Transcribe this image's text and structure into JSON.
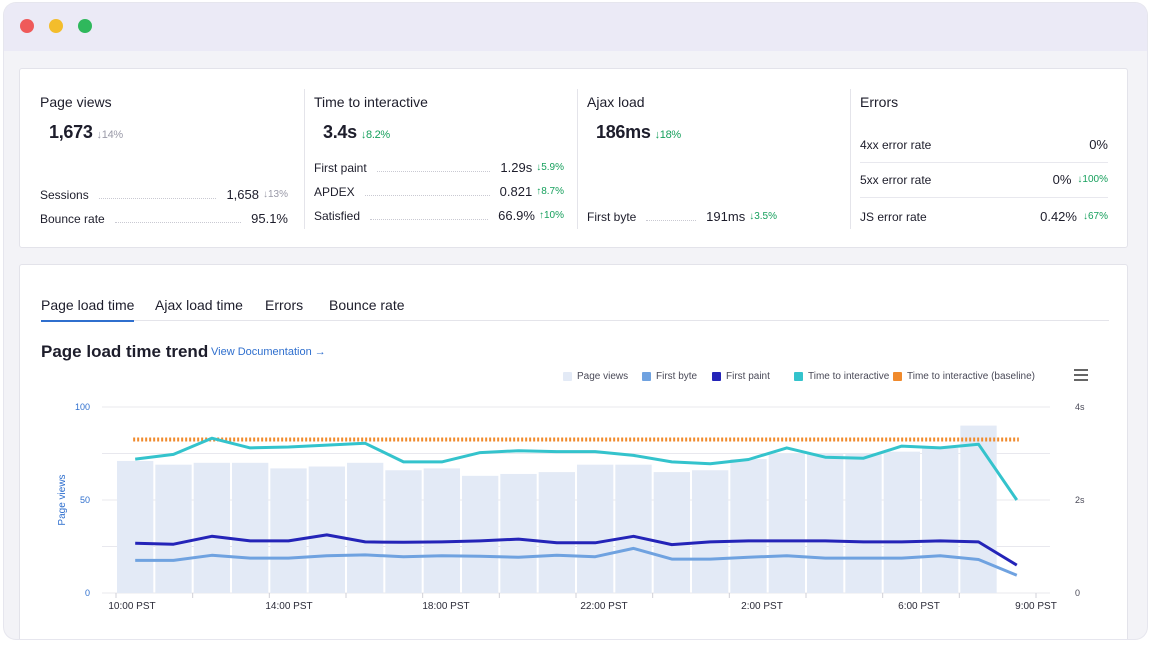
{
  "window": {
    "controls": [
      "close",
      "minimize",
      "maximize"
    ]
  },
  "summary": {
    "page_views": {
      "title": "Page views",
      "value": "1,673",
      "delta": "↓14%",
      "rows": [
        {
          "label": "Sessions",
          "value": "1,658",
          "delta": "↓13%"
        },
        {
          "label": "Bounce rate",
          "value": "95.1%",
          "delta": ""
        }
      ]
    },
    "tti": {
      "title": "Time to interactive",
      "value": "3.4s",
      "delta": "↓8.2%",
      "rows": [
        {
          "label": "First paint",
          "value": "1.29s",
          "delta": "↓5.9%"
        },
        {
          "label": "APDEX",
          "value": "0.821",
          "delta": "↑8.7%"
        },
        {
          "label": "Satisfied",
          "value": "66.9%",
          "delta": "↑10%"
        }
      ]
    },
    "ajax": {
      "title": "Ajax load",
      "value": "186ms",
      "delta": "↓18%",
      "rows": [
        {
          "label": "First byte",
          "value": "191ms",
          "delta": "↓3.5%"
        }
      ]
    },
    "errors": {
      "title": "Errors",
      "rows": [
        {
          "label": "4xx error rate",
          "value": "0%",
          "delta": ""
        },
        {
          "label": "5xx error rate",
          "value": "0%",
          "delta": "↓100%"
        },
        {
          "label": "JS error rate",
          "value": "0.42%",
          "delta": "↓67%"
        }
      ]
    }
  },
  "tabs": [
    "Page load time",
    "Ajax load time",
    "Errors",
    "Bounce rate"
  ],
  "active_tab": "Page load time",
  "trend": {
    "title": "Page load time trend",
    "doc_link": "View Documentation →"
  },
  "colors": {
    "page_views": "#e3eaf6",
    "first_byte": "#6fa2e0",
    "first_paint": "#2424b8",
    "tti": "#34c3cc",
    "baseline": "#f08a2c",
    "accent": "#2f6fce",
    "green": "#17a05d",
    "gray": "#9a9aa8"
  },
  "icons": {
    "menu": "hamburger-menu-icon"
  },
  "chart_data": {
    "type": "line",
    "legend_position": "top-right",
    "legend": [
      "Page views",
      "First byte",
      "First paint",
      "Time to interactive",
      "Time to interactive (baseline)"
    ],
    "x_ticks": [
      "10:00 PST",
      "14:00 PST",
      "18:00 PST",
      "22:00 PST",
      "2:00 PST",
      "6:00 PST",
      "9:00 PST"
    ],
    "y_left": {
      "label": "Page views",
      "ticks": [
        "0",
        "50",
        "100"
      ],
      "range": [
        0,
        100
      ]
    },
    "y_right": {
      "ticks": [
        "0",
        "2s",
        "4s"
      ],
      "range": [
        0,
        4
      ]
    },
    "grid": true,
    "page_views": [
      71,
      69,
      70,
      70,
      67,
      68,
      70,
      66,
      67,
      63,
      64,
      65,
      69,
      69,
      65,
      66,
      72,
      75,
      75,
      75,
      76,
      78,
      90,
      0
    ],
    "first_byte": [
      0.7,
      0.7,
      0.81,
      0.75,
      0.75,
      0.8,
      0.82,
      0.78,
      0.8,
      0.79,
      0.77,
      0.81,
      0.78,
      0.96,
      0.73,
      0.73,
      0.77,
      0.8,
      0.75,
      0.75,
      0.75,
      0.8,
      0.72,
      0.38
    ],
    "first_paint": [
      1.07,
      1.05,
      1.22,
      1.12,
      1.12,
      1.25,
      1.1,
      1.09,
      1.1,
      1.12,
      1.16,
      1.08,
      1.08,
      1.22,
      1.04,
      1.1,
      1.12,
      1.12,
      1.12,
      1.1,
      1.1,
      1.12,
      1.1,
      0.6
    ],
    "tti": [
      2.88,
      2.98,
      3.33,
      3.12,
      3.14,
      3.18,
      3.22,
      2.82,
      2.82,
      3.02,
      3.06,
      3.04,
      3.04,
      2.96,
      2.82,
      2.78,
      2.87,
      3.12,
      2.92,
      2.9,
      3.16,
      3.12,
      3.2,
      2.0
    ],
    "tti_baseline": 3.3
  }
}
